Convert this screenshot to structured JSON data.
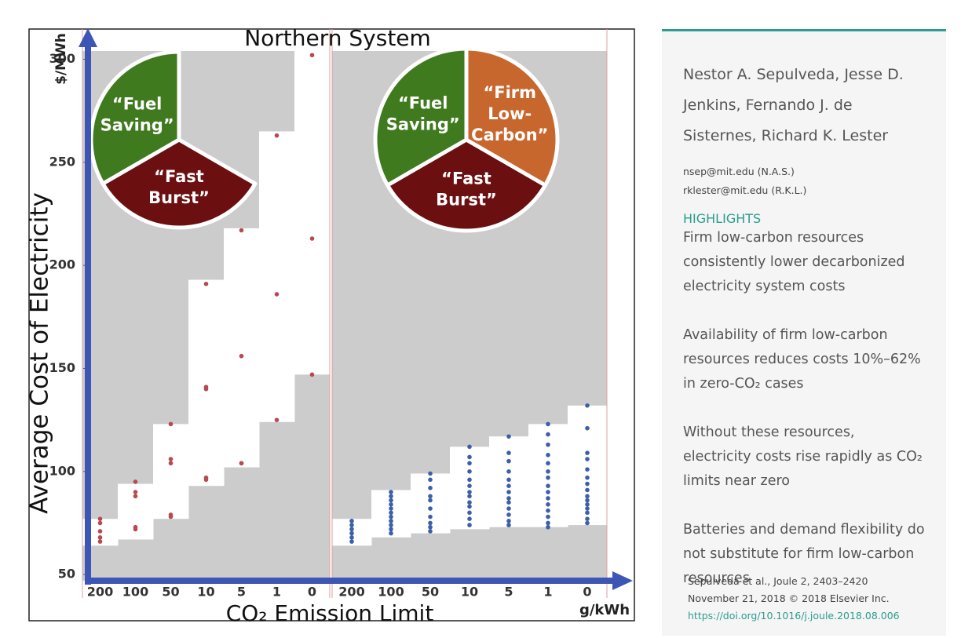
{
  "chart_data": {
    "type": "range-dot",
    "title": "Northern System",
    "y_unit": "$/MWh",
    "y_label": "Average Cost of Electricity",
    "x_label": "CO₂ Emission Limit",
    "x_unit": "g/kWh",
    "ylim": [
      47,
      304
    ],
    "yticks": [
      50,
      100,
      150,
      200,
      250,
      300
    ],
    "axis_color": "#3d55b5",
    "panels": [
      {
        "categories": [
          "200",
          "100",
          "50",
          "10",
          "5",
          "1",
          "0"
        ],
        "color": "#b84a4f",
        "low": [
          64,
          67,
          77,
          93,
          102,
          124,
          147
        ],
        "high": [
          77,
          94,
          123,
          193,
          218,
          265,
          304
        ],
        "points": [
          [
            77,
            75,
            71,
            68,
            66
          ],
          [
            95,
            90,
            88,
            73,
            72
          ],
          [
            123,
            106,
            104,
            79,
            78
          ],
          [
            191,
            141,
            140,
            97,
            96
          ],
          [
            217,
            156,
            104,
            104
          ],
          [
            263,
            186,
            125
          ],
          [
            302,
            213,
            147
          ]
        ],
        "pie": [
          {
            "label": [
              "“Fast",
              "Burst”"
            ],
            "color": "#6b0f10"
          },
          {
            "label": [
              "“Fuel",
              "Saving”"
            ],
            "color": "#3f7a1e"
          }
        ]
      },
      {
        "categories": [
          "200",
          "100",
          "50",
          "10",
          "5",
          "1",
          "0"
        ],
        "color": "#3b5fa8",
        "low": [
          64,
          68,
          70,
          72,
          73,
          73,
          74
        ],
        "high": [
          77,
          91,
          99,
          112,
          117,
          123,
          132
        ],
        "points": [
          [
            76,
            74,
            72,
            70,
            68,
            66
          ],
          [
            90,
            88,
            86,
            84,
            82,
            80,
            78,
            76,
            74,
            72,
            70
          ],
          [
            99,
            96,
            92,
            88,
            86,
            82,
            78,
            75,
            73,
            71
          ],
          [
            112,
            107,
            104,
            100,
            96,
            93,
            90,
            88,
            85,
            83,
            80,
            77,
            74
          ],
          [
            117,
            109,
            105,
            100,
            96,
            93,
            90,
            87,
            85,
            82,
            79,
            76,
            74
          ],
          [
            123,
            118,
            113,
            108,
            104,
            100,
            97,
            93,
            90,
            87,
            84,
            81,
            78,
            75,
            73
          ],
          [
            132,
            121,
            109,
            106,
            101,
            97,
            94,
            91,
            88,
            86,
            84,
            82,
            80,
            77,
            75
          ]
        ],
        "pie": [
          {
            "label": [
              "“Fast",
              "Burst”"
            ],
            "color": "#6b0f10"
          },
          {
            "label": [
              "“Fuel",
              "Saving”"
            ],
            "color": "#3f7a1e"
          },
          {
            "label": [
              "“Firm",
              "Low-",
              "Carbon”"
            ],
            "color": "#c8672d"
          }
        ]
      }
    ]
  },
  "sidebar": {
    "authors": "Nestor A. Sepulveda, Jesse D. Jenkins, Fernando J. de Sisternes, Richard K. Lester",
    "emails": [
      "nsep@mit.edu (N.A.S.)",
      "rklester@mit.edu (R.K.L.)"
    ],
    "highlights_heading": "HIGHLIGHTS",
    "highlights": [
      "Firm low-carbon resources consistently lower decarbonized electricity system costs",
      "Availability of firm low-carbon resources reduces costs 10%–62% in zero-CO₂ cases",
      "Without these resources, electricity costs rise rapidly as CO₂ limits near zero",
      "Batteries and demand flexibility do not substitute for firm low-carbon resources"
    ],
    "citation": [
      "Sepulveda et al., Joule 2, 2403–2420",
      "November 21, 2018 © 2018 Elsevier Inc."
    ],
    "doi": "https://doi.org/10.1016/j.joule.2018.08.006"
  }
}
